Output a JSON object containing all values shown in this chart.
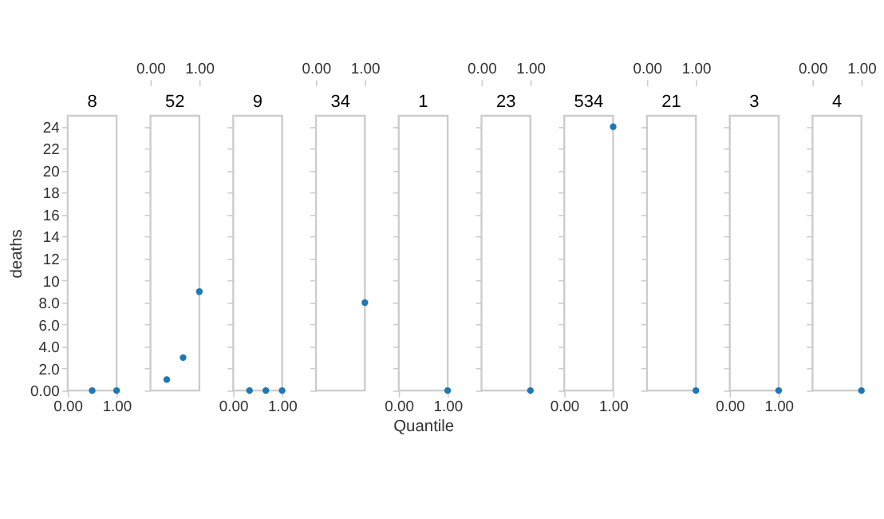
{
  "chart_data": [
    {
      "type": "scatter",
      "title": "8",
      "ylabel": "deaths",
      "x": [
        0.5,
        1.0
      ],
      "values": [
        0,
        0
      ],
      "color": "#1f77b4",
      "marker": "circle",
      "xlim": [
        0,
        1
      ],
      "xticks": [
        {
          "value": 0,
          "label": "0.00"
        },
        {
          "value": 1,
          "label": "1.00"
        }
      ],
      "ylim": [
        0,
        25
      ],
      "yticks": [
        {
          "value": 0,
          "label": "0.00"
        },
        {
          "value": 2,
          "label": "2.0"
        },
        {
          "value": 4,
          "label": "4.0"
        },
        {
          "value": 6,
          "label": "6.0"
        },
        {
          "value": 8,
          "label": "8.0"
        },
        10,
        12,
        14,
        16,
        18,
        20,
        22,
        24
      ]
    },
    {
      "type": "scatter",
      "title": "52",
      "x": [
        0.333,
        0.667,
        1.0
      ],
      "values": [
        1,
        3,
        9
      ],
      "color": "#1f77b4",
      "marker": "circle",
      "xlim": [
        0,
        1
      ],
      "xticks": [
        {
          "value": 0,
          "label": "0.00"
        },
        {
          "value": 1,
          "label": "1.00"
        }
      ],
      "ylim": [
        0,
        25
      ],
      "yticks": [
        0,
        2,
        4,
        6,
        8,
        10,
        12,
        14,
        16,
        18,
        20,
        22,
        24
      ],
      "tick_labels": "x"
    },
    {
      "type": "scatter",
      "title": "9",
      "x": [
        0.333,
        0.667,
        1.0
      ],
      "values": [
        0,
        0,
        0
      ],
      "color": "#1f77b4",
      "marker": "circle",
      "xlim": [
        0,
        1
      ],
      "xticks": [
        {
          "value": 0,
          "label": "0.00"
        },
        {
          "value": 1,
          "label": "1.00"
        }
      ],
      "ylim": [
        0,
        25
      ],
      "yticks": [
        0,
        2,
        4,
        6,
        8,
        10,
        12,
        14,
        16,
        18,
        20,
        22,
        24
      ],
      "tick_labels": "x"
    },
    {
      "type": "scatter",
      "title": "34",
      "x": [
        1.0
      ],
      "values": [
        8
      ],
      "color": "#1f77b4",
      "marker": "circle",
      "xlim": [
        0,
        1
      ],
      "xticks": [
        {
          "value": 0,
          "label": "0.00"
        },
        {
          "value": 1,
          "label": "1.00"
        }
      ],
      "ylim": [
        0,
        25
      ],
      "yticks": [
        0,
        2,
        4,
        6,
        8,
        10,
        12,
        14,
        16,
        18,
        20,
        22,
        24
      ],
      "tick_labels": "x"
    },
    {
      "type": "scatter",
      "title": "1",
      "xlabel": "Quantile",
      "x": [
        1.0
      ],
      "values": [
        0
      ],
      "color": "#1f77b4",
      "marker": "circle",
      "xlim": [
        0,
        1
      ],
      "xticks": [
        {
          "value": 0,
          "label": "0.00"
        },
        {
          "value": 1,
          "label": "1.00"
        }
      ],
      "ylim": [
        0,
        25
      ],
      "yticks": [
        0,
        2,
        4,
        6,
        8,
        10,
        12,
        14,
        16,
        18,
        20,
        22,
        24
      ],
      "tick_labels": "x"
    },
    {
      "type": "scatter",
      "title": "23",
      "x": [
        1.0
      ],
      "values": [
        0
      ],
      "color": "#1f77b4",
      "marker": "circle",
      "xlim": [
        0,
        1
      ],
      "xticks": [
        {
          "value": 0,
          "label": "0.00"
        },
        {
          "value": 1,
          "label": "1.00"
        }
      ],
      "ylim": [
        0,
        25
      ],
      "yticks": [
        0,
        2,
        4,
        6,
        8,
        10,
        12,
        14,
        16,
        18,
        20,
        22,
        24
      ],
      "tick_labels": "x"
    },
    {
      "type": "scatter",
      "title": "534",
      "x": [
        1.0
      ],
      "values": [
        24
      ],
      "color": "#1f77b4",
      "marker": "circle",
      "xlim": [
        0,
        1
      ],
      "xticks": [
        {
          "value": 0,
          "label": "0.00"
        },
        {
          "value": 1,
          "label": "1.00"
        }
      ],
      "ylim": [
        0,
        25
      ],
      "yticks": [
        0,
        2,
        4,
        6,
        8,
        10,
        12,
        14,
        16,
        18,
        20,
        22,
        24
      ],
      "tick_labels": "x"
    },
    {
      "type": "scatter",
      "title": "21",
      "x": [
        1.0
      ],
      "values": [
        0
      ],
      "color": "#1f77b4",
      "marker": "circle",
      "xlim": [
        0,
        1
      ],
      "xticks": [
        {
          "value": 0,
          "label": "0.00"
        },
        {
          "value": 1,
          "label": "1.00"
        }
      ],
      "ylim": [
        0,
        25
      ],
      "yticks": [
        0,
        2,
        4,
        6,
        8,
        10,
        12,
        14,
        16,
        18,
        20,
        22,
        24
      ],
      "tick_labels": "x"
    },
    {
      "type": "scatter",
      "title": "3",
      "x": [
        1.0
      ],
      "values": [
        0
      ],
      "color": "#1f77b4",
      "marker": "circle",
      "xlim": [
        0,
        1
      ],
      "xticks": [
        {
          "value": 0,
          "label": "0.00"
        },
        {
          "value": 1,
          "label": "1.00"
        }
      ],
      "ylim": [
        0,
        25
      ],
      "yticks": [
        0,
        2,
        4,
        6,
        8,
        10,
        12,
        14,
        16,
        18,
        20,
        22,
        24
      ],
      "tick_labels": "x"
    },
    {
      "type": "scatter",
      "title": "4",
      "x": [
        1.0
      ],
      "values": [
        0
      ],
      "color": "#1f77b4",
      "marker": "circle",
      "xlim": [
        0,
        1
      ],
      "xticks": [
        {
          "value": 0,
          "label": "0.00"
        },
        {
          "value": 1,
          "label": "1.00"
        }
      ],
      "ylim": [
        0,
        25
      ],
      "yticks": [
        0,
        2,
        4,
        6,
        8,
        10,
        12,
        14,
        16,
        18,
        20,
        22,
        24
      ],
      "tick_labels": "x"
    }
  ]
}
